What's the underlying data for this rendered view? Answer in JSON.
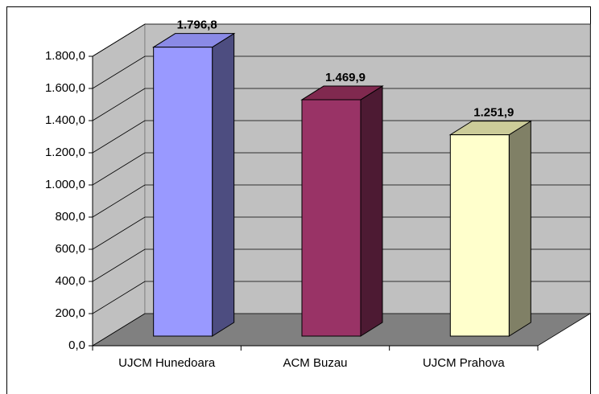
{
  "chart_data": {
    "type": "bar3d",
    "categories": [
      "UJCM Hunedoara",
      "ACM Buzau",
      "UJCM Prahova"
    ],
    "values": [
      1796.8,
      1469.9,
      1251.9
    ],
    "value_labels": [
      "1.796,8",
      "1.469,9",
      "1.251,9"
    ],
    "colors": [
      {
        "front": "#9999ff",
        "side": "#4d4d80",
        "top": "#8a8ae6"
      },
      {
        "front": "#993366",
        "side": "#4d1a33",
        "top": "#80294f"
      },
      {
        "front": "#ffffcc",
        "side": "#808066",
        "top": "#cccc99"
      }
    ],
    "ylim": [
      0,
      1800
    ],
    "yticks": [
      {
        "value": 0,
        "label": "0,0"
      },
      {
        "value": 200,
        "label": "200,0"
      },
      {
        "value": 400,
        "label": "400,0"
      },
      {
        "value": 600,
        "label": "600,0"
      },
      {
        "value": 800,
        "label": "800,0"
      },
      {
        "value": 1000,
        "label": "1.000,0"
      },
      {
        "value": 1200,
        "label": "1.200,0"
      },
      {
        "value": 1400,
        "label": "1.400,0"
      },
      {
        "value": 1600,
        "label": "1.600,0"
      },
      {
        "value": 1800,
        "label": "1.800,0"
      }
    ],
    "grid": true
  }
}
